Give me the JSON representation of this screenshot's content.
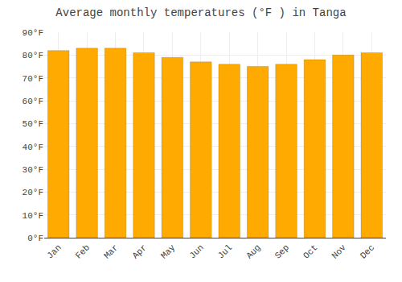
{
  "chart_data": {
    "type": "bar",
    "title": "Average monthly temperatures (°F ) in Tanga",
    "categories": [
      "Jan",
      "Feb",
      "Mar",
      "Apr",
      "May",
      "Jun",
      "Jul",
      "Aug",
      "Sep",
      "Oct",
      "Nov",
      "Dec"
    ],
    "values": [
      82,
      83,
      83,
      81,
      79,
      77,
      76,
      75,
      76,
      78,
      80,
      81
    ],
    "color": "#FFAA00",
    "ylim": [
      0,
      90
    ],
    "yticks": [
      {
        "value": 0,
        "label": "0°F"
      },
      {
        "value": 10,
        "label": "10°F"
      },
      {
        "value": 20,
        "label": "20°F"
      },
      {
        "value": 30,
        "label": "30°F"
      },
      {
        "value": 40,
        "label": "40°F"
      },
      {
        "value": 50,
        "label": "50°F"
      },
      {
        "value": 60,
        "label": "60°F"
      },
      {
        "value": 70,
        "label": "70°F"
      },
      {
        "value": 80,
        "label": "80°F"
      },
      {
        "value": 90,
        "label": "90°F"
      }
    ],
    "grid": true
  }
}
